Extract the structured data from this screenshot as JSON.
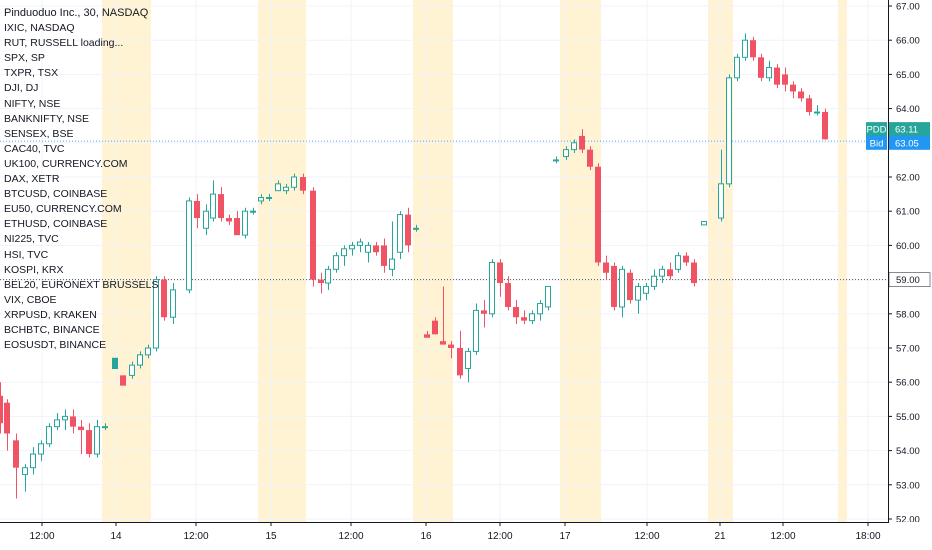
{
  "header": {
    "title": "Pinduoduo Inc., 30, NASDAQ"
  },
  "comparison_symbols": [
    "IXIC, NASDAQ",
    "RUT, RUSSELL loading...",
    "SPX, SP",
    "TXPR, TSX",
    "DJI, DJ",
    "NIFTY, NSE",
    "BANKNIFTY, NSE",
    "SENSEX, BSE",
    "CAC40, TVC",
    "UK100, CURRENCY.COM",
    "DAX, XETR",
    "BTCUSD, COINBASE",
    "EU50, CURRENCY.COM",
    "ETHUSD, COINBASE",
    "NI225, TVC",
    "HSI, TVC",
    "KOSPI, KRX",
    "BEL20, EURONEXT BRUSSELS",
    "VIX, CBOE",
    "XRPUSD, KRAKEN",
    "BCHBTC, BINANCE",
    "EOSUSDT, BINANCE"
  ],
  "price_tags": [
    {
      "label": "PDD",
      "value": "63.11",
      "color": "#26a69a"
    },
    {
      "label": "Bid",
      "value": "63.05",
      "color": "#2196f3"
    },
    {
      "label": "",
      "value": "59.00",
      "color": "#131722"
    }
  ],
  "colors": {
    "up": "#26a69a",
    "down": "#f05464",
    "session_shade": "#fff3d4"
  },
  "chart_data": {
    "type": "candlestick",
    "title": "Pinduoduo Inc., 30, NASDAQ",
    "xlabel": "",
    "ylabel": "",
    "ylim": [
      52,
      67
    ],
    "y_ticks": [
      "52.00",
      "53.00",
      "54.00",
      "55.00",
      "56.00",
      "57.00",
      "58.00",
      "59.00",
      "60.00",
      "61.00",
      "62.00",
      "63.00",
      "64.00",
      "65.00",
      "66.00",
      "67.00"
    ],
    "x_ticks": [
      "12:00",
      "14",
      "12:00",
      "15",
      "12:00",
      "16",
      "12:00",
      "17",
      "12:00",
      "21",
      "12:00",
      "18:00"
    ],
    "grid": true,
    "horizontal_lines": [
      {
        "value": 59.0,
        "style": "dotted",
        "label": "59.00"
      },
      {
        "value": 63.05,
        "style": "dotted",
        "label": "63.05"
      }
    ],
    "candles": [
      {
        "o": 55.6,
        "h": 56.0,
        "l": 54.5,
        "c": 54.8
      },
      {
        "o": 55.4,
        "h": 55.5,
        "l": 54.0,
        "c": 54.5
      },
      {
        "o": 54.3,
        "h": 54.5,
        "l": 52.6,
        "c": 53.5
      },
      {
        "o": 53.3,
        "h": 53.6,
        "l": 52.8,
        "c": 53.5
      },
      {
        "o": 53.5,
        "h": 54.1,
        "l": 53.3,
        "c": 53.9
      },
      {
        "o": 53.9,
        "h": 54.3,
        "l": 53.7,
        "c": 54.2
      },
      {
        "o": 54.2,
        "h": 54.8,
        "l": 54.1,
        "c": 54.7
      },
      {
        "o": 54.7,
        "h": 55.1,
        "l": 54.6,
        "c": 54.9
      },
      {
        "o": 54.9,
        "h": 55.2,
        "l": 54.6,
        "c": 55.0
      },
      {
        "o": 55.0,
        "h": 55.2,
        "l": 54.5,
        "c": 54.7
      },
      {
        "o": 54.7,
        "h": 54.9,
        "l": 53.9,
        "c": 54.6
      },
      {
        "o": 54.6,
        "h": 54.8,
        "l": 53.8,
        "c": 53.9
      },
      {
        "o": 53.9,
        "h": 54.9,
        "l": 53.8,
        "c": 54.7
      },
      {
        "o": 54.7,
        "h": 54.8,
        "l": 54.6,
        "c": 54.7
      },
      {
        "o": 56.4,
        "h": 56.7,
        "l": 56.4,
        "c": 56.7
      },
      {
        "o": 56.2,
        "h": 56.2,
        "l": 55.9,
        "c": 55.9
      },
      {
        "o": 56.2,
        "h": 56.6,
        "l": 56.1,
        "c": 56.5
      },
      {
        "o": 56.5,
        "h": 56.9,
        "l": 56.4,
        "c": 56.8
      },
      {
        "o": 56.8,
        "h": 57.1,
        "l": 56.7,
        "c": 57.0
      },
      {
        "o": 57.0,
        "h": 59.1,
        "l": 56.9,
        "c": 59.0
      },
      {
        "o": 59.0,
        "h": 59.1,
        "l": 57.8,
        "c": 57.9
      },
      {
        "o": 57.9,
        "h": 58.9,
        "l": 57.7,
        "c": 58.7
      },
      {
        "o": 58.7,
        "h": 61.4,
        "l": 58.6,
        "c": 61.3
      },
      {
        "o": 61.3,
        "h": 61.5,
        "l": 60.5,
        "c": 60.8
      },
      {
        "o": 60.5,
        "h": 61.2,
        "l": 60.3,
        "c": 61.0
      },
      {
        "o": 60.8,
        "h": 61.9,
        "l": 60.7,
        "c": 61.5
      },
      {
        "o": 61.5,
        "h": 61.7,
        "l": 60.7,
        "c": 60.8
      },
      {
        "o": 60.8,
        "h": 60.9,
        "l": 60.6,
        "c": 60.7
      },
      {
        "o": 60.8,
        "h": 61.0,
        "l": 60.3,
        "c": 60.3
      },
      {
        "o": 60.3,
        "h": 61.1,
        "l": 60.2,
        "c": 61.0
      },
      {
        "o": 61.0,
        "h": 61.1,
        "l": 60.9,
        "c": 61.0
      },
      {
        "o": 61.3,
        "h": 61.5,
        "l": 61.2,
        "c": 61.4
      },
      {
        "o": 61.4,
        "h": 61.5,
        "l": 61.3,
        "c": 61.4
      },
      {
        "o": 61.6,
        "h": 61.9,
        "l": 61.6,
        "c": 61.8
      },
      {
        "o": 61.6,
        "h": 61.8,
        "l": 61.5,
        "c": 61.7
      },
      {
        "o": 61.7,
        "h": 62.1,
        "l": 61.6,
        "c": 62.0
      },
      {
        "o": 62.0,
        "h": 62.1,
        "l": 61.5,
        "c": 61.6
      },
      {
        "o": 61.6,
        "h": 61.7,
        "l": 58.8,
        "c": 59.0
      },
      {
        "o": 59.0,
        "h": 59.2,
        "l": 58.6,
        "c": 58.9
      },
      {
        "o": 58.9,
        "h": 59.4,
        "l": 58.7,
        "c": 59.3
      },
      {
        "o": 59.3,
        "h": 59.8,
        "l": 59.2,
        "c": 59.7
      },
      {
        "o": 59.7,
        "h": 60.0,
        "l": 59.4,
        "c": 59.9
      },
      {
        "o": 59.9,
        "h": 60.1,
        "l": 59.7,
        "c": 60.0
      },
      {
        "o": 60.0,
        "h": 60.2,
        "l": 59.8,
        "c": 60.1
      },
      {
        "o": 59.8,
        "h": 60.1,
        "l": 59.5,
        "c": 60.0
      },
      {
        "o": 60.0,
        "h": 60.1,
        "l": 59.7,
        "c": 59.8
      },
      {
        "o": 60.0,
        "h": 60.2,
        "l": 59.2,
        "c": 59.4
      },
      {
        "o": 59.3,
        "h": 60.7,
        "l": 59.1,
        "c": 59.6
      },
      {
        "o": 59.8,
        "h": 61.0,
        "l": 59.6,
        "c": 60.9
      },
      {
        "o": 60.9,
        "h": 61.1,
        "l": 59.8,
        "c": 60.0
      },
      {
        "o": 60.5,
        "h": 60.6,
        "l": 60.4,
        "c": 60.5
      },
      {
        "o": 57.4,
        "h": 57.5,
        "l": 57.3,
        "c": 57.3
      },
      {
        "o": 57.8,
        "h": 57.9,
        "l": 57.4,
        "c": 57.4
      },
      {
        "o": 57.2,
        "h": 58.8,
        "l": 57.1,
        "c": 57.1
      },
      {
        "o": 57.1,
        "h": 57.2,
        "l": 56.7,
        "c": 57.0
      },
      {
        "o": 57.0,
        "h": 57.5,
        "l": 56.1,
        "c": 56.2
      },
      {
        "o": 56.4,
        "h": 57.0,
        "l": 56.0,
        "c": 56.9
      },
      {
        "o": 56.9,
        "h": 58.3,
        "l": 56.8,
        "c": 58.1
      },
      {
        "o": 58.1,
        "h": 58.4,
        "l": 57.6,
        "c": 58.0
      },
      {
        "o": 58.0,
        "h": 59.6,
        "l": 57.9,
        "c": 59.5
      },
      {
        "o": 59.5,
        "h": 59.6,
        "l": 58.5,
        "c": 58.9
      },
      {
        "o": 58.9,
        "h": 59.1,
        "l": 58.1,
        "c": 58.2
      },
      {
        "o": 58.2,
        "h": 58.4,
        "l": 57.7,
        "c": 57.9
      },
      {
        "o": 57.9,
        "h": 58.1,
        "l": 57.7,
        "c": 57.8
      },
      {
        "o": 57.8,
        "h": 58.1,
        "l": 57.7,
        "c": 58.0
      },
      {
        "o": 58.0,
        "h": 58.4,
        "l": 57.8,
        "c": 58.3
      },
      {
        "o": 58.2,
        "h": 58.8,
        "l": 58.1,
        "c": 58.8
      },
      {
        "o": 62.5,
        "h": 62.6,
        "l": 62.4,
        "c": 62.5
      },
      {
        "o": 62.6,
        "h": 62.9,
        "l": 62.5,
        "c": 62.8
      },
      {
        "o": 62.8,
        "h": 63.1,
        "l": 62.7,
        "c": 63.0
      },
      {
        "o": 63.2,
        "h": 63.4,
        "l": 62.7,
        "c": 62.8
      },
      {
        "o": 62.8,
        "h": 62.9,
        "l": 62.2,
        "c": 62.3
      },
      {
        "o": 62.3,
        "h": 62.4,
        "l": 59.4,
        "c": 59.5
      },
      {
        "o": 59.5,
        "h": 59.7,
        "l": 59.0,
        "c": 59.2
      },
      {
        "o": 59.4,
        "h": 59.5,
        "l": 58.1,
        "c": 58.2
      },
      {
        "o": 58.2,
        "h": 59.4,
        "l": 57.9,
        "c": 59.3
      },
      {
        "o": 59.2,
        "h": 59.3,
        "l": 58.3,
        "c": 58.4
      },
      {
        "o": 58.4,
        "h": 58.9,
        "l": 58.0,
        "c": 58.8
      },
      {
        "o": 58.6,
        "h": 58.9,
        "l": 58.4,
        "c": 58.8
      },
      {
        "o": 58.8,
        "h": 59.3,
        "l": 58.7,
        "c": 59.1
      },
      {
        "o": 59.1,
        "h": 59.4,
        "l": 58.9,
        "c": 59.3
      },
      {
        "o": 59.3,
        "h": 59.5,
        "l": 59.0,
        "c": 59.1
      },
      {
        "o": 59.3,
        "h": 59.8,
        "l": 59.2,
        "c": 59.7
      },
      {
        "o": 59.7,
        "h": 59.8,
        "l": 59.4,
        "c": 59.5
      },
      {
        "o": 59.5,
        "h": 59.6,
        "l": 58.8,
        "c": 58.9
      },
      {
        "o": 60.6,
        "h": 60.7,
        "l": 60.6,
        "c": 60.7
      },
      {
        "o": 60.8,
        "h": 62.8,
        "l": 60.7,
        "c": 61.8
      },
      {
        "o": 61.8,
        "h": 65.0,
        "l": 61.7,
        "c": 64.9
      },
      {
        "o": 64.9,
        "h": 65.6,
        "l": 64.8,
        "c": 65.5
      },
      {
        "o": 65.5,
        "h": 66.2,
        "l": 65.4,
        "c": 66.0
      },
      {
        "o": 66.0,
        "h": 66.1,
        "l": 65.4,
        "c": 65.5
      },
      {
        "o": 65.5,
        "h": 65.6,
        "l": 64.8,
        "c": 64.9
      },
      {
        "o": 64.9,
        "h": 65.4,
        "l": 64.8,
        "c": 65.2
      },
      {
        "o": 65.2,
        "h": 65.3,
        "l": 64.6,
        "c": 64.7
      },
      {
        "o": 65.0,
        "h": 65.2,
        "l": 64.5,
        "c": 64.7
      },
      {
        "o": 64.7,
        "h": 64.8,
        "l": 64.3,
        "c": 64.5
      },
      {
        "o": 64.5,
        "h": 64.6,
        "l": 64.2,
        "c": 64.3
      },
      {
        "o": 64.3,
        "h": 64.4,
        "l": 63.8,
        "c": 63.9
      },
      {
        "o": 63.9,
        "h": 64.1,
        "l": 63.8,
        "c": 63.9
      },
      {
        "o": 63.9,
        "h": 64.0,
        "l": 63.1,
        "c": 63.1
      }
    ]
  }
}
